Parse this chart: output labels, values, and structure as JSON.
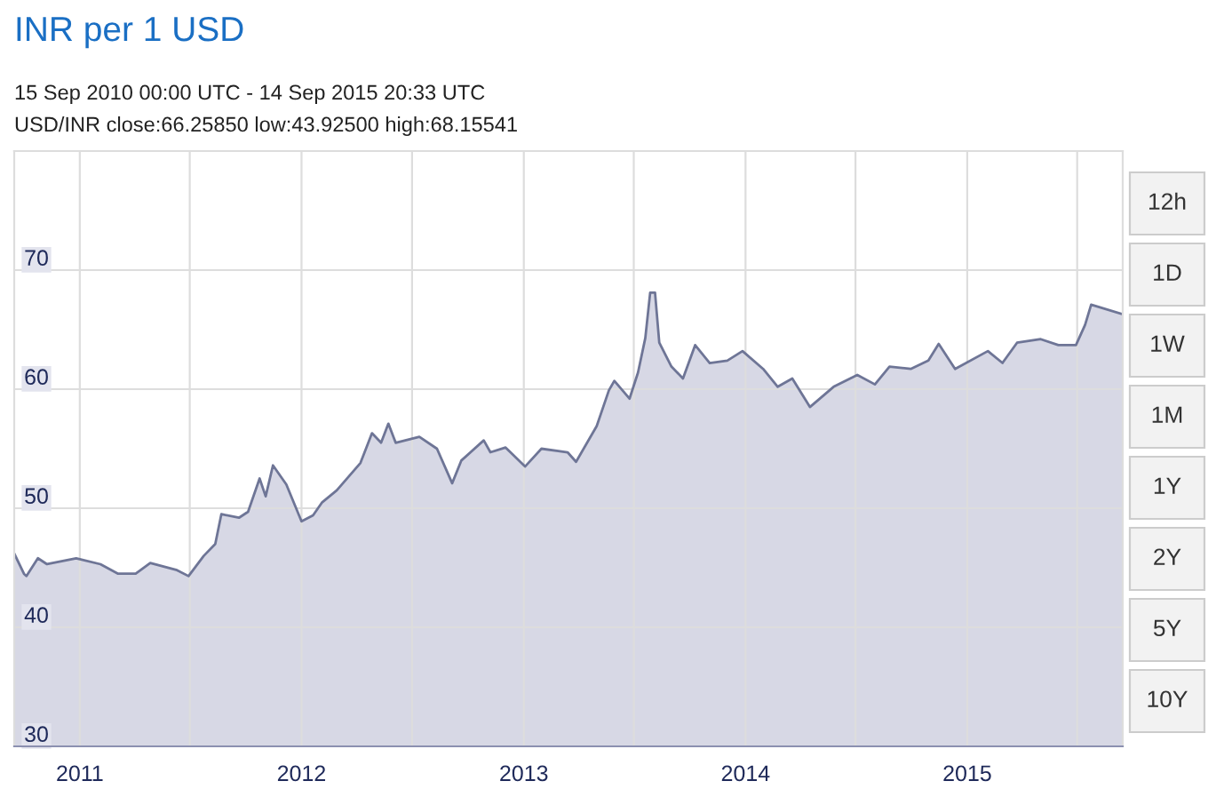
{
  "chart_data": {
    "type": "area",
    "title": "INR per 1 USD",
    "subtitle": "15 Sep 2010 00:00 UTC - 14 Sep 2015 20:33 UTC",
    "annotations": [
      "USD/INR close:66.25850 low:43.92500 high:68.15541",
      "12h",
      "1D",
      "1W",
      "1M",
      "1Y",
      "2Y",
      "5Y",
      "10Y"
    ],
    "x": [
      "2010-09-15",
      "2010-10-01",
      "2010-10-05",
      "2010-10-24",
      "2010-11-08",
      "2010-12-26",
      "2011-02-04",
      "2011-03-05",
      "2011-04-03",
      "2011-04-27",
      "2011-06-10",
      "2011-06-29",
      "2011-07-24",
      "2011-08-12",
      "2011-08-22",
      "2011-09-20",
      "2011-10-05",
      "2011-10-24",
      "2011-11-03",
      "2011-11-15",
      "2011-12-07",
      "2012-01-01",
      "2012-01-20",
      "2012-02-04",
      "2012-02-28",
      "2012-04-07",
      "2012-04-26",
      "2012-05-11",
      "2012-05-23",
      "2012-06-04",
      "2012-07-13",
      "2012-08-11",
      "2012-09-05",
      "2012-09-20",
      "2012-10-27",
      "2012-11-07",
      "2012-12-02",
      "2013-01-03",
      "2013-01-30",
      "2013-03-14",
      "2013-03-28",
      "2013-05-01",
      "2013-05-21",
      "2013-05-30",
      "2013-06-24",
      "2013-07-08",
      "2013-07-20",
      "2013-07-28",
      "2013-08-05",
      "2013-08-12",
      "2013-09-01",
      "2013-09-20",
      "2013-10-10",
      "2013-11-03",
      "2013-12-02",
      "2013-12-27",
      "2014-01-30",
      "2014-02-23",
      "2014-03-19",
      "2014-04-17",
      "2014-05-26",
      "2014-07-04",
      "2014-08-02",
      "2014-08-26",
      "2014-09-30",
      "2014-10-29",
      "2014-11-15",
      "2014-12-12",
      "2015-02-04",
      "2015-02-28",
      "2015-03-24",
      "2015-05-02",
      "2015-05-31",
      "2015-06-29",
      "2015-07-14",
      "2015-07-24",
      "2015-09-14"
    ],
    "series": [
      {
        "color": "#6e7596",
        "values": [
          46.2,
          44.5,
          44.3,
          45.8,
          45.3,
          45.8,
          45.3,
          44.5,
          44.5,
          45.4,
          44.8,
          44.3,
          46.0,
          47.0,
          49.5,
          49.2,
          49.7,
          52.5,
          51.0,
          53.6,
          52.0,
          48.9,
          49.4,
          50.5,
          51.5,
          53.8,
          56.3,
          55.5,
          57.1,
          55.5,
          56.0,
          55.0,
          52.1,
          54.0,
          55.7,
          54.7,
          55.1,
          53.5,
          55.0,
          54.7,
          53.9,
          56.9,
          59.9,
          60.7,
          59.2,
          61.4,
          64.3,
          68.1,
          68.1,
          63.9,
          61.9,
          60.9,
          63.7,
          62.2,
          62.4,
          63.2,
          61.7,
          60.2,
          60.9,
          58.5,
          60.2,
          61.2,
          60.4,
          61.9,
          61.7,
          62.4,
          63.8,
          61.7,
          63.2,
          62.2,
          63.9,
          64.2,
          63.7,
          63.7,
          65.4,
          67.1,
          66.3
        ]
      }
    ],
    "xlim": [
      "2010-09-15",
      "2015-09-14"
    ],
    "xticks": [
      {
        "value": "2011-01-01",
        "label": "2011"
      },
      {
        "value": "2011-07-01",
        "label": null
      },
      {
        "value": "2012-01-01",
        "label": "2012"
      },
      {
        "value": "2012-07-01",
        "label": null
      },
      {
        "value": "2013-01-01",
        "label": "2013"
      },
      {
        "value": "2013-07-01",
        "label": null
      },
      {
        "value": "2014-01-01",
        "label": "2014"
      },
      {
        "value": "2014-07-01",
        "label": null
      },
      {
        "value": "2015-01-01",
        "label": "2015"
      },
      {
        "value": "2015-07-01",
        "label": null
      }
    ],
    "ylim": [
      30,
      80
    ],
    "yticks": [
      30,
      40,
      50,
      60,
      70
    ],
    "grid": true
  }
}
